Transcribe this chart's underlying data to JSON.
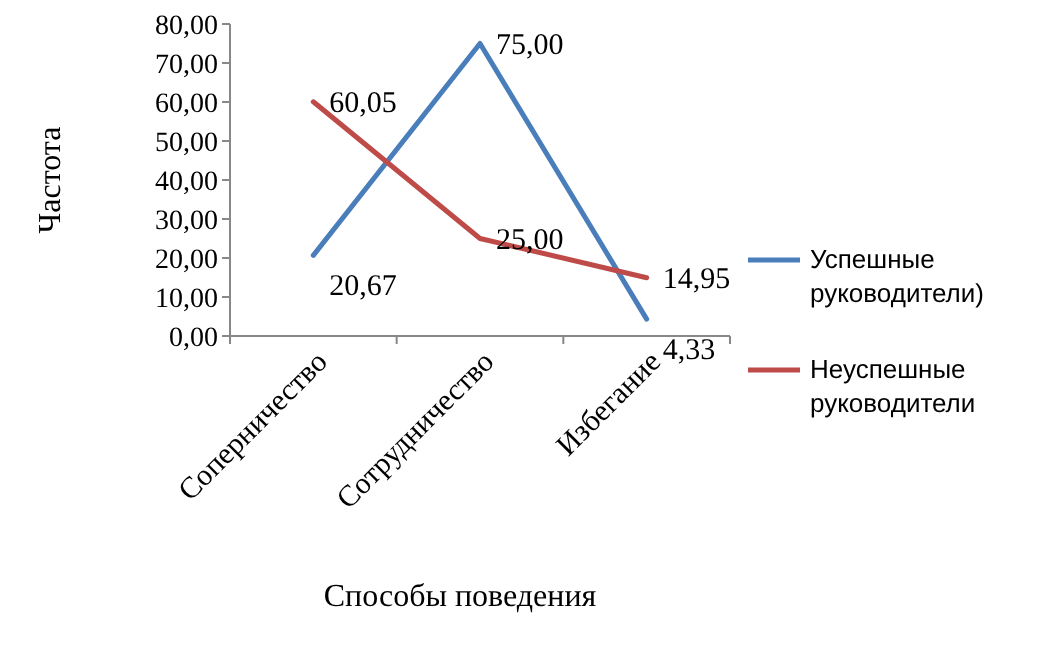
{
  "chart_data": {
    "type": "line",
    "xlabel": "Способы поведения",
    "ylabel": "Частота",
    "categories": [
      "Соперничество",
      "Сотрудничество",
      "Избегание"
    ],
    "series": [
      {
        "name": "Успешные руководители)",
        "color": "#4a7ebb",
        "values": [
          20.67,
          75.0,
          4.33
        ],
        "value_labels": [
          "20,67",
          "75,00",
          "4,33"
        ]
      },
      {
        "name": "Неуспешные руководители",
        "color": "#be4b48",
        "values": [
          60.05,
          25.0,
          14.95
        ],
        "value_labels": [
          "60,05",
          "25,00",
          "14,95"
        ]
      }
    ],
    "ylim": [
      0,
      80
    ],
    "yticks": [
      {
        "value": 0,
        "label": "0,00"
      },
      {
        "value": 10,
        "label": "10,00"
      },
      {
        "value": 20,
        "label": "20,00"
      },
      {
        "value": 30,
        "label": "30,00"
      },
      {
        "value": 40,
        "label": "40,00"
      },
      {
        "value": 50,
        "label": "50,00"
      },
      {
        "value": 60,
        "label": "60,00"
      },
      {
        "value": 70,
        "label": "70,00"
      },
      {
        "value": 80,
        "label": "80,00"
      }
    ],
    "legend": "right",
    "marker": "none",
    "line_style": "solid"
  }
}
